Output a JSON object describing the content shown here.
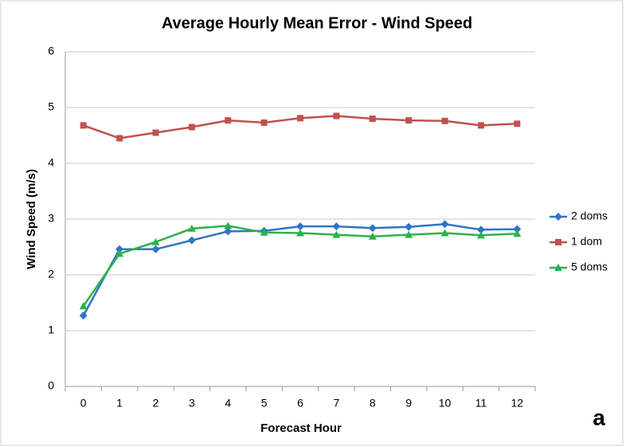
{
  "chart_data": {
    "type": "line",
    "title": "Average Hourly Mean Error - Wind Speed",
    "x_label": "Forecast Hour",
    "y_label": "Wind Speed (m/s)",
    "annotation": "a",
    "categories": [
      "0",
      "1",
      "2",
      "3",
      "4",
      "5",
      "6",
      "7",
      "8",
      "9",
      "10",
      "11",
      "12"
    ],
    "series": [
      {
        "name": "2 doms",
        "color": "#2e75c6",
        "marker": "diamond",
        "values": [
          1.27,
          2.46,
          2.46,
          2.62,
          2.78,
          2.79,
          2.87,
          2.87,
          2.84,
          2.86,
          2.91,
          2.81,
          2.82
        ]
      },
      {
        "name": "1 dom",
        "color": "#c0504d",
        "marker": "square",
        "values": [
          4.68,
          4.45,
          4.55,
          4.65,
          4.77,
          4.73,
          4.81,
          4.85,
          4.8,
          4.77,
          4.76,
          4.68,
          4.71
        ]
      },
      {
        "name": "5 doms",
        "color": "#2bb24c",
        "marker": "triangle",
        "values": [
          1.44,
          2.38,
          2.59,
          2.83,
          2.88,
          2.76,
          2.75,
          2.72,
          2.69,
          2.72,
          2.75,
          2.71,
          2.74
        ]
      }
    ],
    "ylim": [
      0,
      6
    ],
    "yticks": [
      0,
      1,
      2,
      3,
      4,
      5,
      6
    ],
    "grid": true,
    "legend": "right"
  }
}
